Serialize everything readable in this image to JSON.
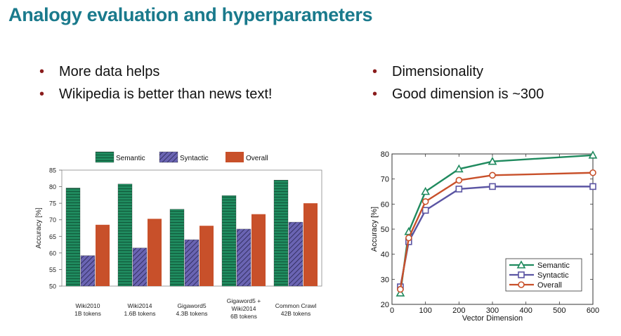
{
  "slide": {
    "title": "Analogy evaluation and hyperparameters"
  },
  "bullets_left": [
    "More data helps",
    "Wikipedia is better than news text!"
  ],
  "bullets_right": [
    "Dimensionality",
    "Good dimension is ~300"
  ],
  "colors": {
    "title": "#1a7a8c",
    "bullet": "#8a1c1c",
    "semantic": "#1f8a5e",
    "syntactic": "#5b55a3",
    "overall": "#c8502a"
  },
  "chart_data": [
    {
      "type": "bar",
      "ylabel": "Accuracy [%]",
      "ylim": [
        50,
        85
      ],
      "yticks": [
        50,
        55,
        60,
        65,
        70,
        75,
        80,
        85
      ],
      "legend_position": "top",
      "categories": [
        [
          "Wiki2010",
          "1B tokens"
        ],
        [
          "Wiki2014",
          "1.6B tokens"
        ],
        [
          "Gigaword5",
          "4.3B tokens"
        ],
        [
          "Gigaword5 +",
          "Wiki2014",
          "6B tokens"
        ],
        [
          "Common Crawl",
          "42B tokens"
        ]
      ],
      "series": [
        {
          "name": "Semantic",
          "values": [
            79.6,
            80.8,
            73.2,
            77.3,
            82.0
          ]
        },
        {
          "name": "Syntactic",
          "values": [
            59.2,
            61.5,
            64.0,
            67.2,
            69.3
          ]
        },
        {
          "name": "Overall",
          "values": [
            68.5,
            70.3,
            68.2,
            71.7,
            75.0
          ]
        }
      ]
    },
    {
      "type": "line",
      "xlabel": "Vector Dimension",
      "ylabel": "Accuracy [%]",
      "xlim": [
        0,
        600
      ],
      "ylim": [
        20,
        80
      ],
      "xticks": [
        0,
        100,
        200,
        300,
        400,
        500,
        600
      ],
      "yticks": [
        20,
        30,
        40,
        50,
        60,
        70,
        80
      ],
      "legend_position": "bottom-right",
      "x": [
        25,
        50,
        100,
        200,
        300,
        600
      ],
      "series": [
        {
          "name": "Semantic",
          "marker": "triangle",
          "values": [
            24.5,
            49.0,
            65.0,
            74.0,
            77.0,
            79.5
          ]
        },
        {
          "name": "Syntactic",
          "marker": "square",
          "values": [
            27.0,
            45.0,
            57.5,
            66.0,
            67.0,
            67.0
          ]
        },
        {
          "name": "Overall",
          "marker": "circle",
          "values": [
            26.0,
            46.5,
            61.0,
            69.5,
            71.5,
            72.5
          ]
        }
      ]
    }
  ]
}
